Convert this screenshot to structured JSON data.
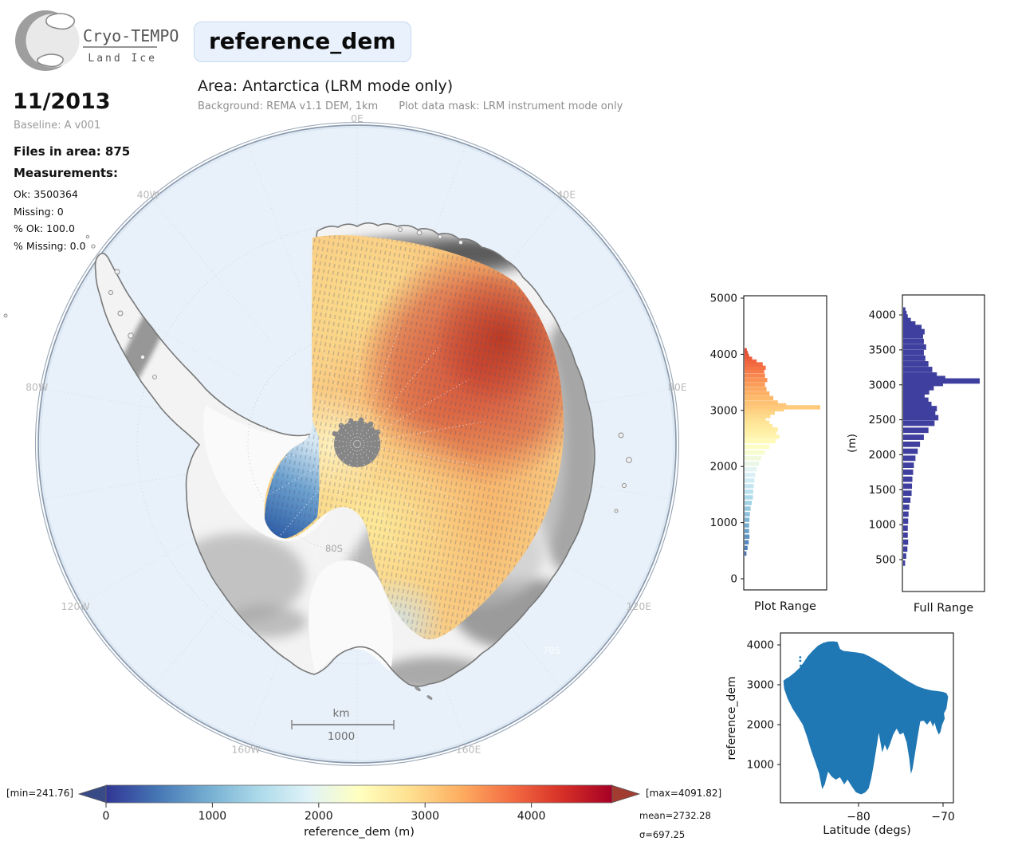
{
  "colors": {
    "ocean": "#e8f1fa",
    "map_rim": "#8a99ad",
    "title_box_bg": "#e9f2fc",
    "hist_full_bar": "#3f3f9f",
    "scatter_point": "#1f77b4",
    "cbar_under_arrow": "#394b86",
    "cbar_over_arrow": "#a33c30",
    "land_fill": "#f3f3f3",
    "coast_stroke": "#787878"
  },
  "header": {
    "logo_title": "Cryo-TEMPO",
    "logo_subtitle": "Land Ice",
    "variable": "reference_dem",
    "area_title": "Area: Antarctica (LRM mode only)",
    "note_background": "Background: REMA v1.1 DEM, 1km",
    "note_mask": "Plot data mask: LRM instrument mode only"
  },
  "sidebar": {
    "date": "11/2013",
    "baseline": "Baseline: A v001",
    "files": "Files in area: 875",
    "measurements_label": "Measurements:",
    "ok": "Ok: 3500364",
    "missing": "Missing: 0",
    "pct_ok": "% Ok: 100.0",
    "pct_missing": "% Missing: 0.0"
  },
  "map": {
    "meridian_labels": [
      {
        "t": "0E",
        "a": 0
      },
      {
        "t": "40E",
        "a": 40
      },
      {
        "t": "80E",
        "a": 80
      },
      {
        "t": "120E",
        "a": 120
      },
      {
        "t": "160E",
        "a": 160
      },
      {
        "t": "160W",
        "a": -160
      },
      {
        "t": "120W",
        "a": -120
      },
      {
        "t": "80W",
        "a": -80
      },
      {
        "t": "40W",
        "a": -40
      }
    ],
    "lat_label_80": "80S",
    "lat_label_70": "70S",
    "scalebar_unit": "km",
    "scalebar_value": "1000"
  },
  "elevation_distribution": {
    "elev": [
      450,
      550,
      650,
      750,
      850,
      950,
      1050,
      1150,
      1250,
      1350,
      1450,
      1550,
      1650,
      1750,
      1850,
      1950,
      2050,
      2150,
      2250,
      2350,
      2450,
      2530,
      2600,
      2660,
      2720,
      2780,
      2840,
      2900,
      2960,
      3020,
      3055,
      3090,
      3140,
      3220,
      3300,
      3380,
      3460,
      3540,
      3620,
      3700,
      3760,
      3820,
      3870,
      3920,
      3970,
      4020,
      4070
    ],
    "frac": [
      0.025,
      0.04,
      0.055,
      0.065,
      0.06,
      0.06,
      0.065,
      0.07,
      0.08,
      0.095,
      0.11,
      0.115,
      0.12,
      0.13,
      0.14,
      0.16,
      0.19,
      0.22,
      0.27,
      0.33,
      0.41,
      0.46,
      0.42,
      0.44,
      0.37,
      0.33,
      0.28,
      0.34,
      0.4,
      0.52,
      1.0,
      0.55,
      0.44,
      0.38,
      0.33,
      0.29,
      0.27,
      0.3,
      0.27,
      0.26,
      0.28,
      0.24,
      0.16,
      0.1,
      0.06,
      0.045,
      0.03
    ]
  },
  "chart_data": [
    {
      "type": "colorbar",
      "label": "reference_dem (m)",
      "ticks": [
        0,
        1000,
        2000,
        3000,
        4000
      ],
      "axis_vmax": 4760,
      "min_label": "[min=241.76]",
      "max_label": "[max=4091.82]",
      "mean_label": "mean=2732.28",
      "sigma_label": "σ=697.25",
      "cmap": [
        [
          0,
          "#313695"
        ],
        [
          0.1,
          "#4575b4"
        ],
        [
          0.2,
          "#74add1"
        ],
        [
          0.3,
          "#abd9e9"
        ],
        [
          0.4,
          "#e0f3f8"
        ],
        [
          0.5,
          "#ffffbf"
        ],
        [
          0.6,
          "#fee090"
        ],
        [
          0.7,
          "#fdae61"
        ],
        [
          0.8,
          "#f46d43"
        ],
        [
          0.9,
          "#d73027"
        ],
        [
          1,
          "#a50026"
        ]
      ]
    },
    {
      "type": "bar",
      "title": "Plot Range",
      "orientation": "horizontal",
      "ylim": [
        0,
        5000
      ],
      "yticks": [
        0,
        1000,
        2000,
        3000,
        4000,
        5000
      ],
      "bins_source": "elevation_distribution",
      "color_mode": "cmap"
    },
    {
      "type": "bar",
      "title": "Full Range",
      "orientation": "horizontal",
      "ylabel": "(m)",
      "ylim": [
        67,
        4286
      ],
      "yticks": [
        500,
        1000,
        1500,
        2000,
        2500,
        3000,
        3500,
        4000
      ],
      "bins_source": "elevation_distribution",
      "color_mode": "solid"
    },
    {
      "type": "scatter",
      "xlabel": "Latitude (degs)",
      "ylabel": "reference_dem",
      "xticks": [
        -80,
        -70
      ],
      "xtick_labels": [
        "−80",
        "−70"
      ],
      "yticks": [
        1000,
        2000,
        3000,
        4000
      ],
      "xlim": [
        -89.2,
        -68.8
      ],
      "ylim": [
        40,
        4300
      ],
      "outline": [
        [
          -88.9,
          3100
        ],
        [
          -88.6,
          3150
        ],
        [
          -88.2,
          3200
        ],
        [
          -87.6,
          3300
        ],
        [
          -87.0,
          3420
        ],
        [
          -86.5,
          3560
        ],
        [
          -86.0,
          3720
        ],
        [
          -85.4,
          3860
        ],
        [
          -84.8,
          3980
        ],
        [
          -84.2,
          4050
        ],
        [
          -83.6,
          4085
        ],
        [
          -83.0,
          4090
        ],
        [
          -82.5,
          4075
        ],
        [
          -82.2,
          3900
        ],
        [
          -81.8,
          3850
        ],
        [
          -81.0,
          3830
        ],
        [
          -80.2,
          3810
        ],
        [
          -79.4,
          3780
        ],
        [
          -78.6,
          3700
        ],
        [
          -77.8,
          3600
        ],
        [
          -77.0,
          3500
        ],
        [
          -76.2,
          3380
        ],
        [
          -75.4,
          3260
        ],
        [
          -74.6,
          3150
        ],
        [
          -73.8,
          3050
        ],
        [
          -73.0,
          2960
        ],
        [
          -72.2,
          2900
        ],
        [
          -71.4,
          2860
        ],
        [
          -70.6,
          2840
        ],
        [
          -70.0,
          2820
        ],
        [
          -69.6,
          2790
        ],
        [
          -69.4,
          2700
        ],
        [
          -69.5,
          2550
        ],
        [
          -69.6,
          2400
        ],
        [
          -69.9,
          2280
        ],
        [
          -69.8,
          2150
        ],
        [
          -70.1,
          2000
        ],
        [
          -70.3,
          1820
        ],
        [
          -70.5,
          1750
        ],
        [
          -70.8,
          1900
        ],
        [
          -71.0,
          2050
        ],
        [
          -71.2,
          1950
        ],
        [
          -71.5,
          2100
        ],
        [
          -71.9,
          2000
        ],
        [
          -72.3,
          2100
        ],
        [
          -72.7,
          2080
        ],
        [
          -73.0,
          1700
        ],
        [
          -73.3,
          1300
        ],
        [
          -73.6,
          900
        ],
        [
          -73.8,
          760
        ],
        [
          -74.0,
          1150
        ],
        [
          -74.3,
          1550
        ],
        [
          -74.7,
          1800
        ],
        [
          -75.1,
          1750
        ],
        [
          -75.5,
          1900
        ],
        [
          -75.9,
          1750
        ],
        [
          -76.3,
          1500
        ],
        [
          -76.6,
          1350
        ],
        [
          -76.9,
          1500
        ],
        [
          -77.2,
          1300
        ],
        [
          -77.6,
          1800
        ],
        [
          -77.9,
          1400
        ],
        [
          -78.2,
          1000
        ],
        [
          -78.5,
          650
        ],
        [
          -78.8,
          400
        ],
        [
          -79.2,
          300
        ],
        [
          -79.7,
          250
        ],
        [
          -80.3,
          300
        ],
        [
          -80.8,
          450
        ],
        [
          -81.3,
          620
        ],
        [
          -81.7,
          500
        ],
        [
          -82.2,
          680
        ],
        [
          -82.7,
          620
        ],
        [
          -83.2,
          700
        ],
        [
          -83.6,
          820
        ],
        [
          -84.0,
          500
        ],
        [
          -84.3,
          380
        ],
        [
          -84.7,
          800
        ],
        [
          -85.1,
          1050
        ],
        [
          -85.6,
          1350
        ],
        [
          -86.1,
          1700
        ],
        [
          -86.6,
          2000
        ],
        [
          -87.2,
          2200
        ],
        [
          -87.8,
          2400
        ],
        [
          -88.4,
          2650
        ],
        [
          -88.8,
          2900
        ]
      ],
      "stray_points": [
        [
          -86.9,
          3690
        ],
        [
          -86.9,
          3600
        ],
        [
          -86.85,
          3480
        ],
        [
          -86.9,
          3400
        ]
      ]
    }
  ]
}
